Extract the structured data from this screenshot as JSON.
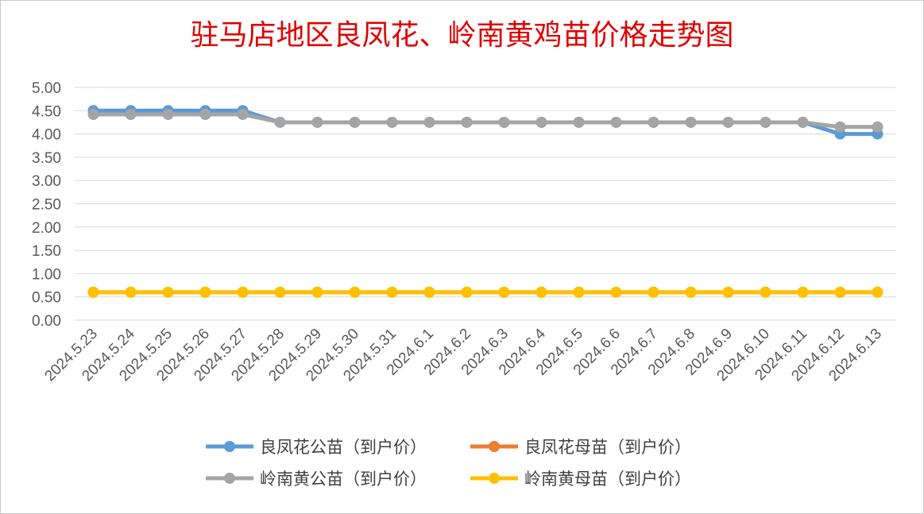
{
  "chart_data": {
    "type": "line",
    "title": "驻马店地区良凤花、岭南黄鸡苗价格走势图",
    "xlabel": "",
    "ylabel": "",
    "ylim": [
      0,
      5
    ],
    "yticks": [
      "0.00",
      "0.50",
      "1.00",
      "1.50",
      "2.00",
      "2.50",
      "3.00",
      "3.50",
      "4.00",
      "4.50",
      "5.00"
    ],
    "grid": true,
    "legend_position": "bottom",
    "categories": [
      "2024.5.23",
      "2024.5.24",
      "2024.5.25",
      "2024.5.26",
      "2024.5.27",
      "2024.5.28",
      "2024.5.29",
      "2024.5.30",
      "2024.5.31",
      "2024.6.1",
      "2024.6.2",
      "2024.6.3",
      "2024.6.4",
      "2024.6.5",
      "2024.6.6",
      "2024.6.7",
      "2024.6.8",
      "2024.6.9",
      "2024.6.10",
      "2024.6.11",
      "2024.6.12",
      "2024.6.13"
    ],
    "series": [
      {
        "name": "良凤花公苗（到户价）",
        "color": "#5b9bd5",
        "values": [
          4.5,
          4.5,
          4.5,
          4.5,
          4.5,
          4.25,
          4.25,
          4.25,
          4.25,
          4.25,
          4.25,
          4.25,
          4.25,
          4.25,
          4.25,
          4.25,
          4.25,
          4.25,
          4.25,
          4.25,
          4.0,
          4.0
        ]
      },
      {
        "name": "良凤花母苗（到户价）",
        "color": "#ed7d31",
        "values": [
          0.6,
          0.6,
          0.6,
          0.6,
          0.6,
          0.6,
          0.6,
          0.6,
          0.6,
          0.6,
          0.6,
          0.6,
          0.6,
          0.6,
          0.6,
          0.6,
          0.6,
          0.6,
          0.6,
          0.6,
          0.6,
          0.6
        ]
      },
      {
        "name": "岭南黄公苗（到户价）",
        "color": "#a5a5a5",
        "values": [
          4.42,
          4.42,
          4.42,
          4.42,
          4.42,
          4.25,
          4.25,
          4.25,
          4.25,
          4.25,
          4.25,
          4.25,
          4.25,
          4.25,
          4.25,
          4.25,
          4.25,
          4.25,
          4.25,
          4.25,
          4.15,
          4.15
        ]
      },
      {
        "name": "岭南黄母苗（到户价）",
        "color": "#ffc000",
        "values": [
          0.6,
          0.6,
          0.6,
          0.6,
          0.6,
          0.6,
          0.6,
          0.6,
          0.6,
          0.6,
          0.6,
          0.6,
          0.6,
          0.6,
          0.6,
          0.6,
          0.6,
          0.6,
          0.6,
          0.6,
          0.6,
          0.6
        ]
      }
    ]
  }
}
